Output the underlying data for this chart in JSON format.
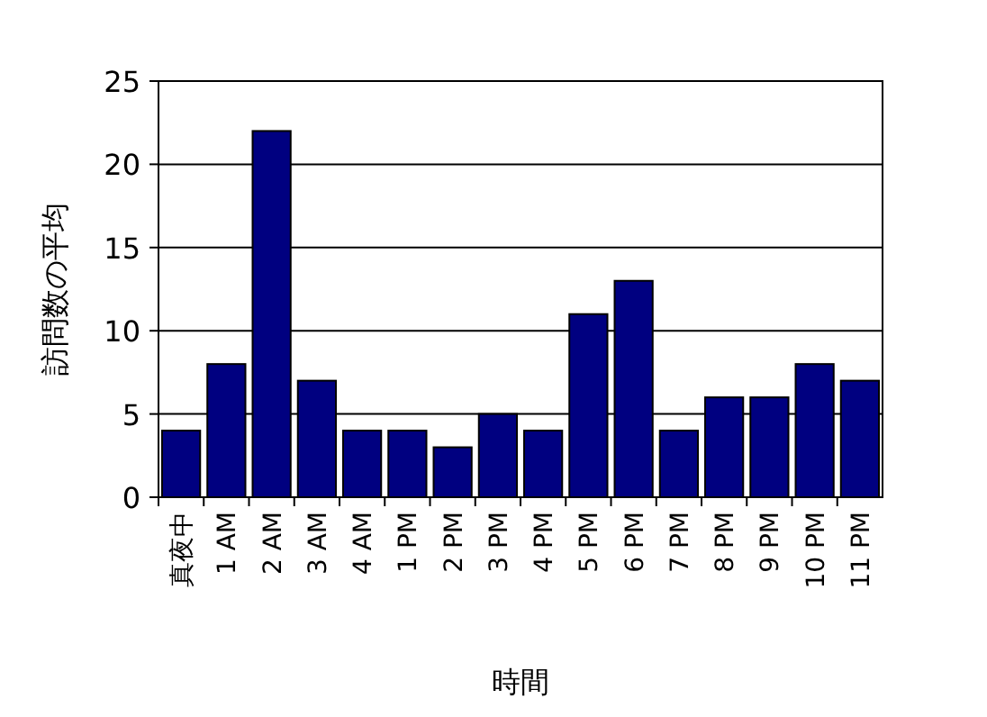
{
  "chart_data": {
    "type": "bar",
    "xlabel": "時間",
    "ylabel": "訪問数の平均",
    "categories": [
      "真夜中",
      "1 AM",
      "2 AM",
      "3 AM",
      "4 AM",
      "1 PM",
      "2 PM",
      "3 PM",
      "4 PM",
      "5 PM",
      "6 PM",
      "7 PM",
      "8 PM",
      "9 PM",
      "10 PM",
      "11 PM"
    ],
    "values": [
      4,
      8,
      22,
      7,
      4,
      4,
      3,
      5,
      4,
      11,
      13,
      4,
      6,
      6,
      8,
      7
    ],
    "color": "#000080",
    "ylim": [
      0,
      25
    ],
    "yticks": [
      0,
      5,
      10,
      15,
      20,
      25
    ],
    "grid": "y"
  }
}
